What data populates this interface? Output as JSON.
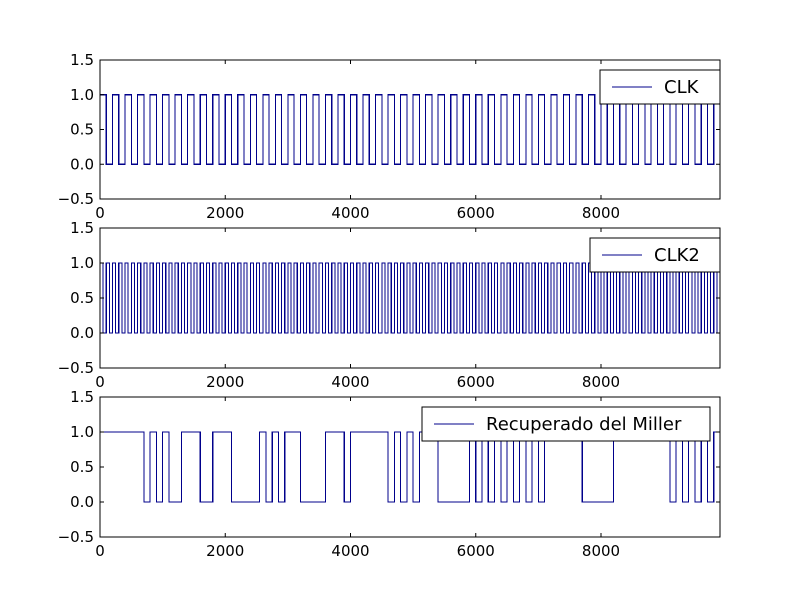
{
  "chart_data": [
    {
      "type": "line",
      "step": true,
      "title": "",
      "xlabel": "",
      "ylabel": "",
      "xlim": [
        0,
        9900
      ],
      "ylim": [
        -0.5,
        1.5
      ],
      "x_ticks": [
        0,
        2000,
        4000,
        6000,
        8000
      ],
      "x_tick_labels": [
        "0",
        "2000",
        "4000",
        "6000",
        "8000"
      ],
      "y_ticks": [
        -0.5,
        0.0,
        0.5,
        1.0,
        1.5
      ],
      "y_tick_labels": [
        "−0.5",
        "0.0",
        "0.5",
        "1.0",
        "1.5"
      ],
      "grid": false,
      "legend_position": "top-right",
      "series": [
        {
          "name": "CLK",
          "color": "#00008b",
          "pattern": "square wave, period 200, starts high for 100 then low for 100",
          "x": [
            0,
            100,
            200,
            300,
            400,
            500,
            600,
            700,
            800,
            900,
            1000,
            1100,
            1200,
            1300,
            1400,
            1500,
            1600,
            1700,
            1800,
            1900,
            2000,
            2100,
            2200,
            2300,
            2400,
            2500,
            2600,
            2700,
            2800,
            2900,
            3000,
            3100,
            3200,
            3300,
            3400,
            3500,
            3600,
            3700,
            3800,
            3900,
            4000,
            4100,
            4200,
            4300,
            4400,
            4500,
            4600,
            4700,
            4800,
            4900,
            5000,
            5100,
            5200,
            5300,
            5400,
            5500,
            5600,
            5700,
            5800,
            5900,
            6000,
            6100,
            6200,
            6300,
            6400,
            6500,
            6600,
            6700,
            6800,
            6900,
            7000,
            7100,
            7200,
            7300,
            7400,
            7500,
            7600,
            7700,
            7800,
            7900,
            8000,
            8100,
            8200,
            8300,
            8400,
            8500,
            8600,
            8700,
            8800,
            8900,
            9000,
            9100,
            9200,
            9300,
            9400,
            9500,
            9600,
            9700,
            9800
          ],
          "values": [
            1,
            0,
            1,
            0,
            1,
            0,
            1,
            0,
            1,
            0,
            1,
            0,
            1,
            0,
            1,
            0,
            1,
            0,
            1,
            0,
            1,
            0,
            1,
            0,
            1,
            0,
            1,
            0,
            1,
            0,
            1,
            0,
            1,
            0,
            1,
            0,
            1,
            0,
            1,
            0,
            1,
            0,
            1,
            0,
            1,
            0,
            1,
            0,
            1,
            0,
            1,
            0,
            1,
            0,
            1,
            0,
            1,
            0,
            1,
            0,
            1,
            0,
            1,
            0,
            1,
            0,
            1,
            0,
            1,
            0,
            1,
            0,
            1,
            0,
            1,
            0,
            1,
            0,
            1,
            0,
            1,
            0,
            1,
            0,
            1,
            0,
            1,
            0,
            1,
            0,
            1,
            0,
            1,
            0,
            1,
            0,
            1,
            0,
            1
          ]
        }
      ]
    },
    {
      "type": "line",
      "step": true,
      "title": "",
      "xlabel": "",
      "ylabel": "",
      "xlim": [
        0,
        9900
      ],
      "ylim": [
        -0.5,
        1.5
      ],
      "x_ticks": [
        0,
        2000,
        4000,
        6000,
        8000
      ],
      "x_tick_labels": [
        "0",
        "2000",
        "4000",
        "6000",
        "8000"
      ],
      "y_ticks": [
        -0.5,
        0.0,
        0.5,
        1.0,
        1.5
      ],
      "y_tick_labels": [
        "−0.5",
        "0.0",
        "0.5",
        "1.0",
        "1.5"
      ],
      "grid": false,
      "legend_position": "top-right",
      "series": [
        {
          "name": "CLK2",
          "color": "#00008b",
          "pattern": "square wave, period 100, starts high for 50 then low for 50",
          "x": [
            0,
            50,
            100,
            150,
            200,
            250,
            300,
            350,
            400,
            450,
            500,
            550,
            600,
            650,
            700,
            750,
            800,
            850,
            900,
            950,
            1000,
            1050,
            1100,
            1150,
            1200,
            1250,
            1300,
            1350,
            1400,
            1450,
            1500,
            1550,
            1600,
            1650,
            1700,
            1750,
            1800,
            1850,
            1900,
            1950,
            2000,
            2050,
            2100,
            2150,
            2200,
            2250,
            2300,
            2350,
            2400,
            2450,
            2500,
            2550,
            2600,
            2650,
            2700,
            2750,
            2800,
            2850,
            2900,
            2950,
            3000,
            3050,
            3100,
            3150,
            3200,
            3250,
            3300,
            3350,
            3400,
            3450,
            3500,
            3550,
            3600,
            3650,
            3700,
            3750,
            3800,
            3850,
            3900,
            3950,
            4000,
            4050,
            4100,
            4150,
            4200,
            4250,
            4300,
            4350,
            4400,
            4450,
            4500,
            4550,
            4600,
            4650,
            4700,
            4750,
            4800,
            4850,
            4900,
            4950,
            5000,
            5050,
            5100,
            5150,
            5200,
            5250,
            5300,
            5350,
            5400,
            5450,
            5500,
            5550,
            5600,
            5650,
            5700,
            5750,
            5800,
            5850,
            5900,
            5950,
            6000,
            6050,
            6100,
            6150,
            6200,
            6250,
            6300,
            6350,
            6400,
            6450,
            6500,
            6550,
            6600,
            6650,
            6700,
            6750,
            6800,
            6850,
            6900,
            6950,
            7000,
            7050,
            7100,
            7150,
            7200,
            7250,
            7300,
            7350,
            7400,
            7450,
            7500,
            7550,
            7600,
            7650,
            7700,
            7750,
            7800,
            7850,
            7900,
            7950,
            8000,
            8050,
            8100,
            8150,
            8200,
            8250,
            8300,
            8350,
            8400,
            8450,
            8500,
            8550,
            8600,
            8650,
            8700,
            8750,
            8800,
            8850,
            8900,
            8950,
            9000,
            9050,
            9100,
            9150,
            9200,
            9250,
            9300,
            9350,
            9400,
            9450,
            9500,
            9550,
            9600,
            9650,
            9700,
            9750,
            9800,
            9850
          ],
          "values": [
            1,
            0,
            1,
            0,
            1,
            0,
            1,
            0,
            1,
            0,
            1,
            0,
            1,
            0,
            1,
            0,
            1,
            0,
            1,
            0,
            1,
            0,
            1,
            0,
            1,
            0,
            1,
            0,
            1,
            0,
            1,
            0,
            1,
            0,
            1,
            0,
            1,
            0,
            1,
            0,
            1,
            0,
            1,
            0,
            1,
            0,
            1,
            0,
            1,
            0,
            1,
            0,
            1,
            0,
            1,
            0,
            1,
            0,
            1,
            0,
            1,
            0,
            1,
            0,
            1,
            0,
            1,
            0,
            1,
            0,
            1,
            0,
            1,
            0,
            1,
            0,
            1,
            0,
            1,
            0,
            1,
            0,
            1,
            0,
            1,
            0,
            1,
            0,
            1,
            0,
            1,
            0,
            1,
            0,
            1,
            0,
            1,
            0,
            1,
            0,
            1,
            0,
            1,
            0,
            1,
            0,
            1,
            0,
            1,
            0,
            1,
            0,
            1,
            0,
            1,
            0,
            1,
            0,
            1,
            0,
            1,
            0,
            1,
            0,
            1,
            0,
            1,
            0,
            1,
            0,
            1,
            0,
            1,
            0,
            1,
            0,
            1,
            0,
            1,
            0,
            1,
            0,
            1,
            0,
            1,
            0,
            1,
            0,
            1,
            0,
            1,
            0,
            1,
            0,
            1,
            0,
            1,
            0,
            1,
            0,
            1,
            0,
            1,
            0,
            1,
            0,
            1,
            0,
            1,
            0,
            1,
            0,
            1,
            0,
            1,
            0,
            1,
            0,
            1,
            0,
            1,
            0,
            1,
            0,
            1,
            0,
            1,
            0,
            1,
            0,
            1,
            0,
            1,
            0,
            1,
            0,
            1,
            0
          ]
        }
      ]
    },
    {
      "type": "line",
      "step": true,
      "title": "",
      "xlabel": "",
      "ylabel": "",
      "xlim": [
        0,
        9900
      ],
      "ylim": [
        -0.5,
        1.5
      ],
      "x_ticks": [
        0,
        2000,
        4000,
        6000,
        8000
      ],
      "x_tick_labels": [
        "0",
        "2000",
        "4000",
        "6000",
        "8000"
      ],
      "y_ticks": [
        -0.5,
        0.0,
        0.5,
        1.0,
        1.5
      ],
      "y_tick_labels": [
        "−0.5",
        "0.0",
        "0.5",
        "1.0",
        "1.5"
      ],
      "grid": false,
      "legend_position": "top-right",
      "series": [
        {
          "name": "Recuperado del Miller",
          "color": "#00008b",
          "x": [
            0,
            700,
            800,
            900,
            1000,
            1100,
            1300,
            1600,
            1800,
            2100,
            2550,
            2650,
            2750,
            2850,
            2950,
            3200,
            3600,
            3900,
            4000,
            4600,
            4700,
            4800,
            4900,
            5000,
            5100,
            5400,
            5900,
            6000,
            6100,
            6200,
            6300,
            6400,
            6500,
            6600,
            6700,
            6800,
            6900,
            7000,
            7100,
            7700,
            8200,
            9100,
            9200,
            9300,
            9400,
            9500,
            9600,
            9700,
            9800
          ],
          "values": [
            1,
            0,
            1,
            0,
            1,
            0,
            1,
            0,
            1,
            0,
            1,
            0,
            1,
            0,
            1,
            0,
            1,
            0,
            1,
            0,
            1,
            0,
            1,
            0,
            1,
            0,
            1,
            0,
            1,
            0,
            1,
            0,
            1,
            0,
            1,
            0,
            1,
            0,
            1,
            0,
            1,
            0,
            1,
            0,
            1,
            0,
            1,
            0,
            1
          ]
        }
      ]
    }
  ]
}
